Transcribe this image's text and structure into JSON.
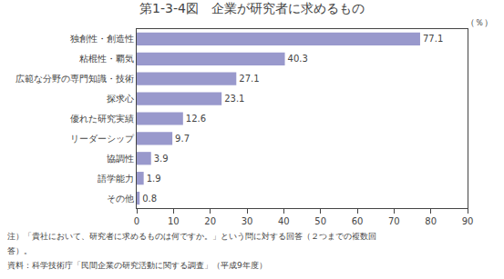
{
  "chart_data": {
    "type": "bar",
    "orientation": "horizontal",
    "title": "第1-3-4図　企業が研究者に求めるもの",
    "categories": [
      "その他",
      "語学能力",
      "協調性",
      "リーダーシップ",
      "優れた研究実績",
      "探求心",
      "広範な分野の専門知識・技術",
      "粘棍性・覇気",
      "独創性・創造性"
    ],
    "values": [
      0.8,
      1.9,
      3.9,
      9.7,
      12.6,
      23.1,
      27.1,
      40.3,
      77.1
    ],
    "color": "#9999cc",
    "xlim": [
      0,
      90
    ],
    "xticks": [
      0,
      10,
      20,
      30,
      40,
      50,
      60,
      70,
      80,
      90
    ],
    "xlabel": "（％）",
    "annotations": [
      "注）「貴社において、研究者に求めるものは何ですか。」という問に対する回答（２つまでの複数回",
      "答）。",
      "資料：科学技術庁「民間企業の研究活動に関する調査」（平成9年度）"
    ],
    "grid": false,
    "data_labels": true
  }
}
